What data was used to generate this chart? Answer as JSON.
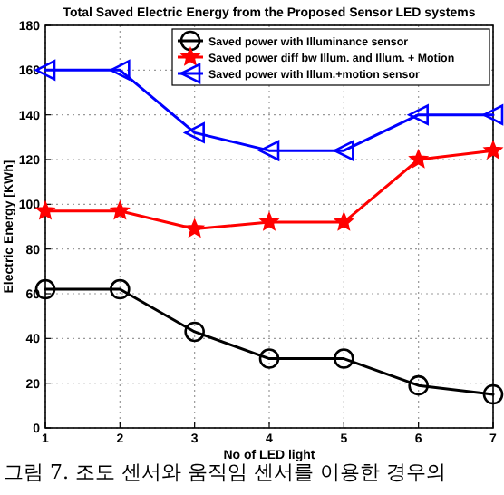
{
  "chart_data": {
    "type": "line",
    "title": "Total Saved Electric Energy from the Proposed Sensor LED systems",
    "xlabel": "No of LED light",
    "ylabel": "Electric Energy [KWh]",
    "x": [
      1,
      2,
      3,
      4,
      5,
      6,
      7
    ],
    "series": [
      {
        "name": "Saved power with Illuminance sensor",
        "color": "#000000",
        "marker": "circle",
        "values": [
          62,
          62,
          43,
          31,
          31,
          19,
          15
        ]
      },
      {
        "name": "Saved power diff bw Illum. and Illum. + Motion",
        "color": "#ff0000",
        "marker": "star",
        "values": [
          97,
          97,
          89,
          92,
          92,
          120,
          124
        ]
      },
      {
        "name": "Saved power with Illum.+motion sensor",
        "color": "#0000ff",
        "marker": "triangle",
        "values": [
          160,
          160,
          132,
          124,
          124,
          140,
          140
        ]
      }
    ],
    "xlim": [
      1,
      7
    ],
    "xticks": [
      1,
      2,
      3,
      4,
      5,
      6,
      7
    ],
    "ylim": [
      0,
      180
    ],
    "yticks": [
      0,
      20,
      40,
      60,
      80,
      100,
      120,
      140,
      160,
      180
    ],
    "grid": true,
    "legend": "top right",
    "line_style": "solid",
    "annotations": [
      "그림 7. 조도 센서와 움직임 센서를 이용한 경우의"
    ]
  }
}
